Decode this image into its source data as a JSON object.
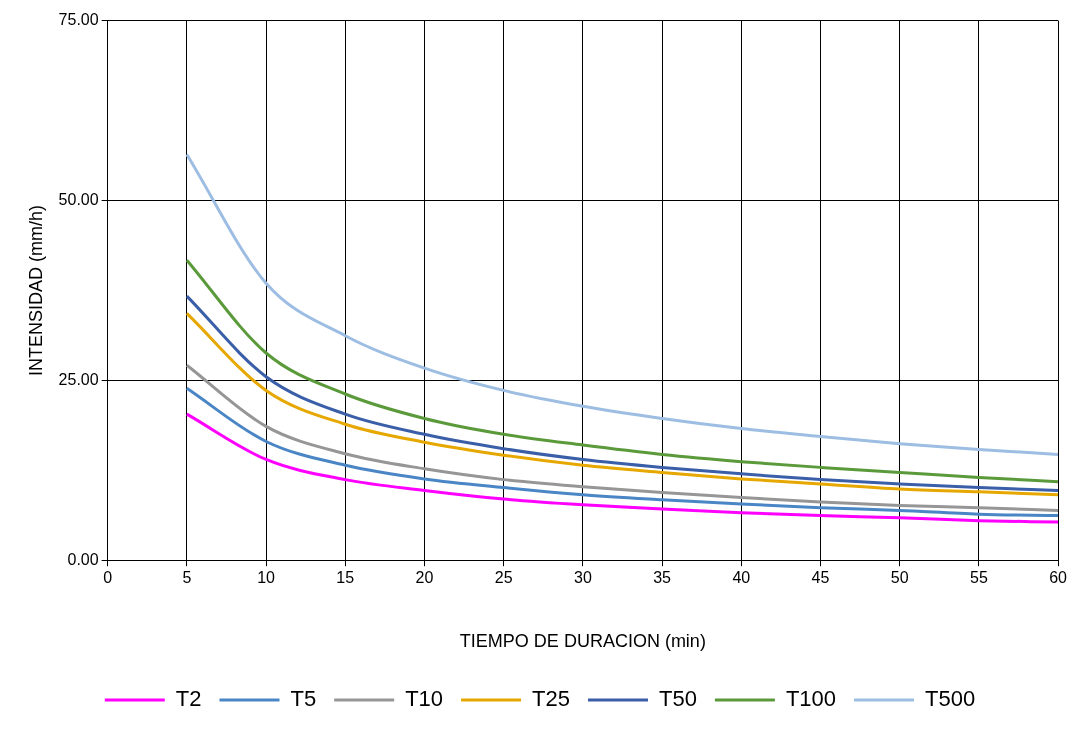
{
  "chart_data": {
    "type": "line",
    "xlabel": "TIEMPO DE DURACION (min)",
    "ylabel": "INTENSIDAD (mm/h)",
    "x": [
      5,
      10,
      15,
      20,
      25,
      30,
      35,
      40,
      45,
      50,
      55,
      60
    ],
    "series": [
      {
        "name": "T2",
        "color": "#ff00ff",
        "values": [
          20.3,
          14.0,
          11.2,
          9.7,
          8.5,
          7.7,
          7.1,
          6.6,
          6.2,
          5.9,
          5.5,
          5.3
        ]
      },
      {
        "name": "T5",
        "color": "#4a86c5",
        "values": [
          23.9,
          16.5,
          13.2,
          11.3,
          10.1,
          9.1,
          8.4,
          7.8,
          7.3,
          6.9,
          6.4,
          6.2
        ]
      },
      {
        "name": "T10",
        "color": "#969696",
        "values": [
          27.1,
          18.6,
          14.8,
          12.7,
          11.2,
          10.2,
          9.4,
          8.7,
          8.1,
          7.6,
          7.3,
          6.9
        ]
      },
      {
        "name": "T25",
        "color": "#e6a800",
        "values": [
          34.3,
          23.6,
          18.9,
          16.4,
          14.6,
          13.2,
          12.2,
          11.3,
          10.6,
          9.9,
          9.5,
          9.1
        ]
      },
      {
        "name": "T50",
        "color": "#3a5fa8",
        "values": [
          36.7,
          25.5,
          20.3,
          17.5,
          15.5,
          14.0,
          12.9,
          12.0,
          11.2,
          10.6,
          10.1,
          9.7
        ]
      },
      {
        "name": "T100",
        "color": "#5b9a3a",
        "values": [
          41.7,
          28.8,
          23.1,
          19.7,
          17.5,
          16.0,
          14.7,
          13.7,
          12.9,
          12.2,
          11.5,
          10.9
        ]
      },
      {
        "name": "T500",
        "color": "#9dbde3",
        "values": [
          56.4,
          38.5,
          31.2,
          26.7,
          23.6,
          21.4,
          19.7,
          18.3,
          17.2,
          16.2,
          15.4,
          14.7
        ]
      }
    ],
    "xlim": [
      0,
      60
    ],
    "xticks": [
      0,
      5,
      10,
      15,
      20,
      25,
      30,
      35,
      40,
      45,
      50,
      55,
      60
    ],
    "ylim": [
      0,
      75
    ],
    "yticks": [
      {
        "value": 0,
        "label": "0.00"
      },
      {
        "value": 25,
        "label": "25.00"
      },
      {
        "value": 50,
        "label": "50.00"
      },
      {
        "value": 75,
        "label": "75.00"
      }
    ],
    "grid": true,
    "legend": "bottom",
    "marker": "none",
    "line_style": "solid"
  }
}
